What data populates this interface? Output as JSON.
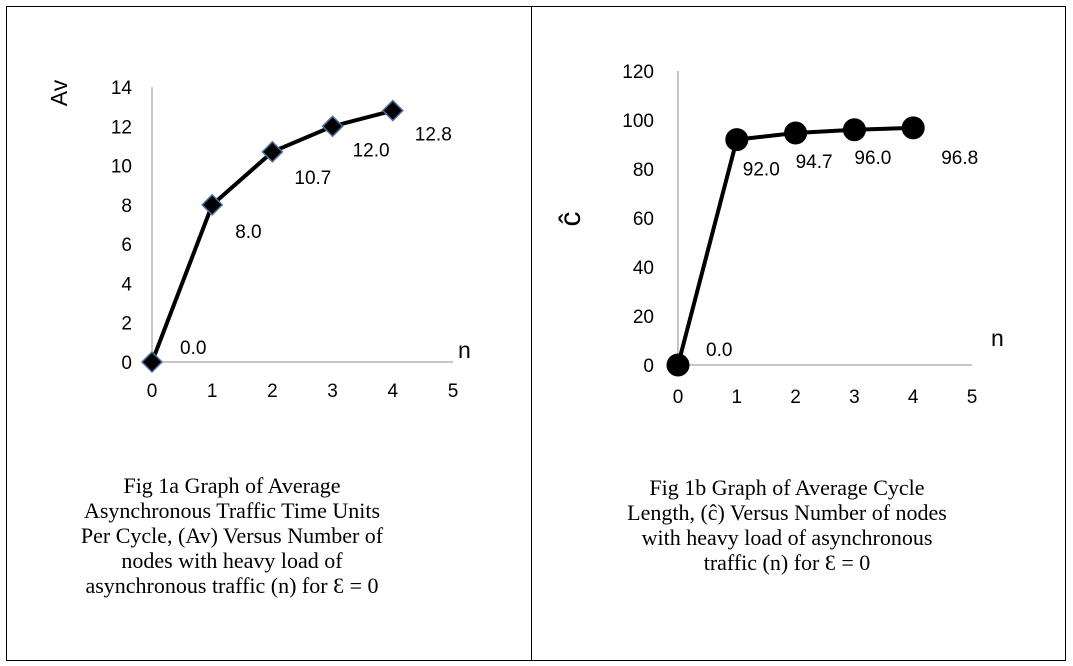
{
  "figures": [
    {
      "caption_lines": [
        "Fig  1a Graph of Average",
        "Asynchronous Traffic Time Units",
        "Per Cycle,  (Av) Versus Number of",
        "nodes with heavy load of",
        "asynchronous traffic  (n) for Ɛ = 0"
      ]
    },
    {
      "caption_lines": [
        "Fig  1b Graph of Average Cycle",
        "Length, (ĉ) Versus Number of nodes",
        "with heavy load of asynchronous",
        "traffic  (n) for Ɛ = 0"
      ]
    }
  ],
  "chart_data": [
    {
      "type": "line",
      "marker": "diamond",
      "title": "",
      "xlabel": "n",
      "ylabel": "Av",
      "xlim": [
        0,
        5
      ],
      "ylim": [
        0,
        14
      ],
      "xticks": [
        0,
        1,
        2,
        3,
        4,
        5
      ],
      "yticks": [
        0,
        2,
        4,
        6,
        8,
        10,
        12,
        14
      ],
      "x": [
        0,
        1,
        2,
        3,
        4
      ],
      "y": [
        0,
        8,
        10.7,
        12,
        12.8
      ],
      "data_labels": [
        "0.0",
        "8.0",
        "10.7",
        "12.0",
        "12.8"
      ],
      "grid": false,
      "line_color": "#000000",
      "marker_fill": "#000000",
      "marker_stroke": "#4a6fa5"
    },
    {
      "type": "line",
      "marker": "circle",
      "title": "",
      "xlabel": "n",
      "ylabel": "ĉ",
      "xlim": [
        0,
        5
      ],
      "ylim": [
        0,
        120
      ],
      "xticks": [
        0,
        1,
        2,
        3,
        4,
        5
      ],
      "yticks": [
        0,
        20,
        40,
        60,
        80,
        100,
        120
      ],
      "x": [
        0,
        1,
        2,
        3,
        4
      ],
      "y": [
        0,
        92,
        94.7,
        96,
        96.8
      ],
      "data_labels": [
        "0.0",
        "92.0",
        "94.7",
        "96.0",
        "96.8"
      ],
      "grid": false,
      "line_color": "#000000",
      "marker_fill": "#000000",
      "marker_stroke": "#000000"
    }
  ]
}
